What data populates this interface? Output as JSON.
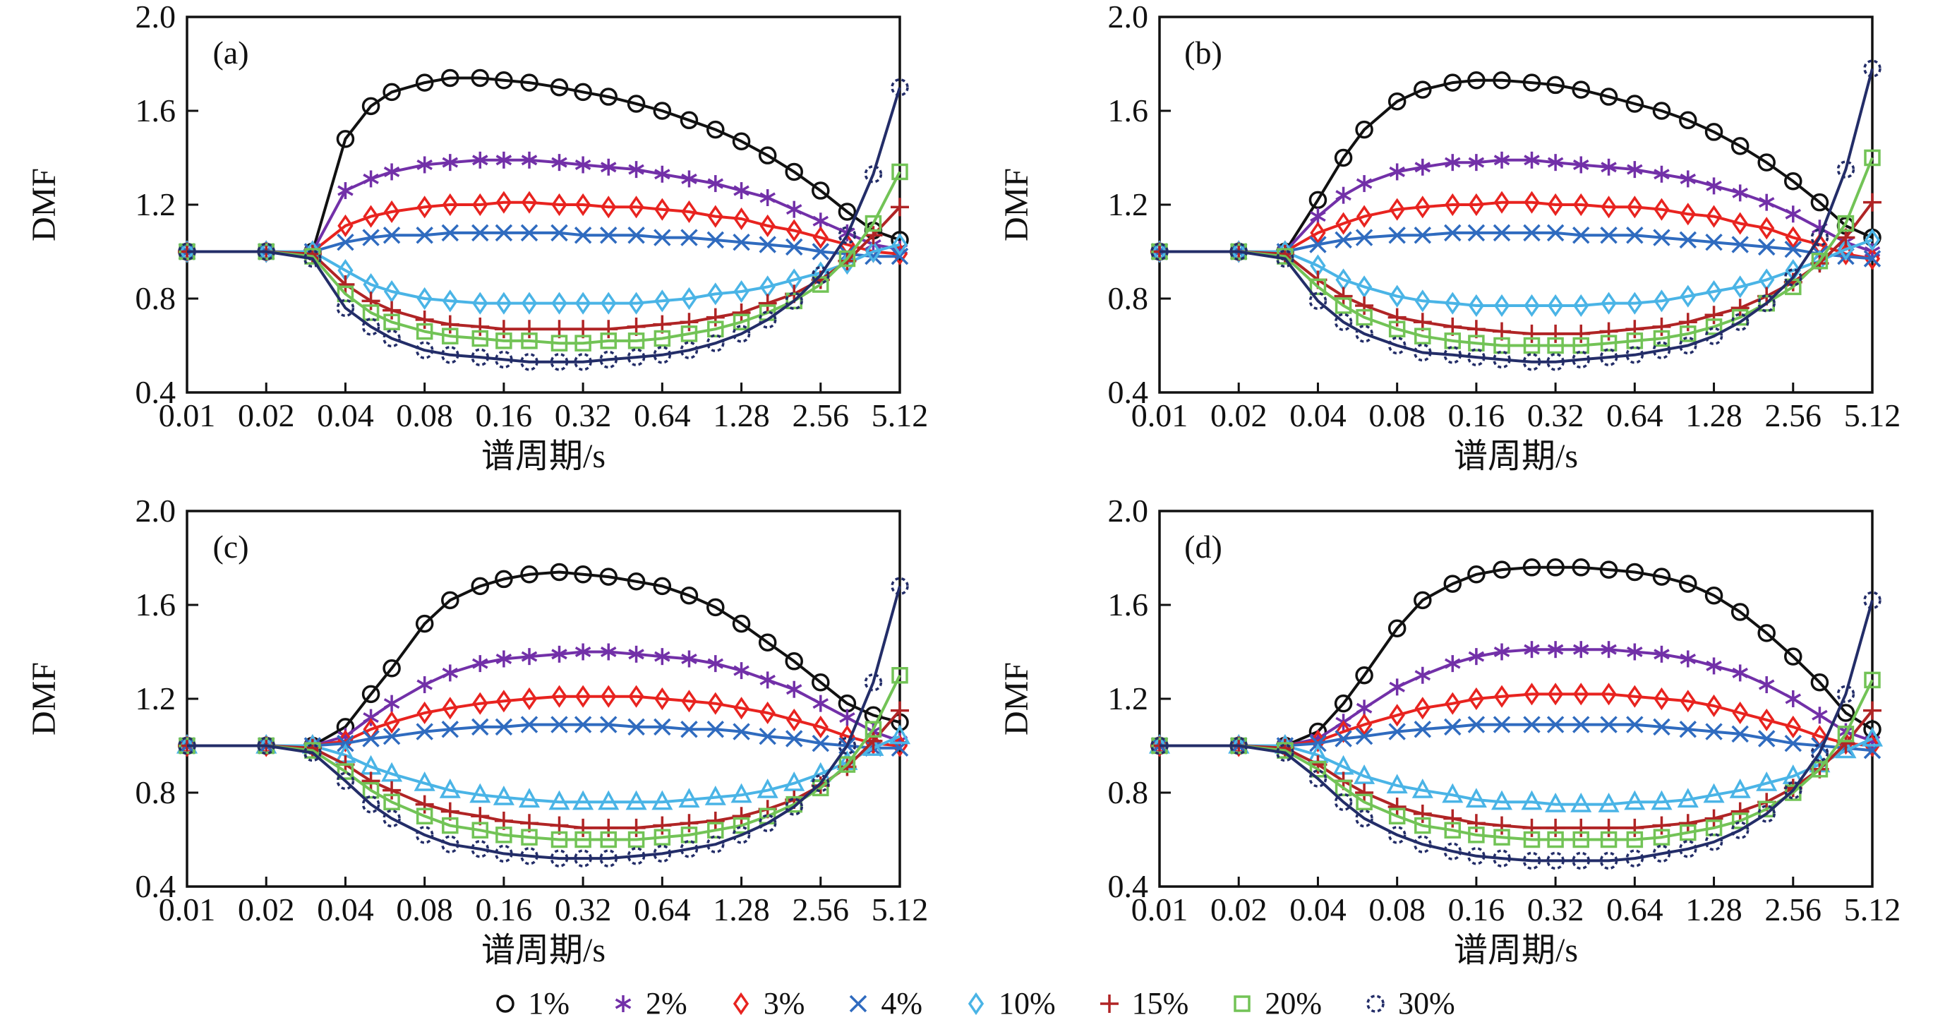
{
  "figure": {
    "background": "#ffffff",
    "subplot_letters": [
      "(a)",
      "(b)",
      "(c)",
      "(d)"
    ]
  },
  "chart_data": {
    "type": "line+scatter",
    "x_scale": "log2",
    "xlim": [
      0.01,
      5.12
    ],
    "ylim": [
      0.4,
      2.0
    ],
    "grid": "off",
    "legend_position": "bottom-center",
    "xlabel": "谱周期/s",
    "ylabel": "DMF",
    "x_tick_labels": [
      "0.01",
      "0.02",
      "0.04",
      "0.08",
      "0.16",
      "0.32",
      "0.64",
      "1.28",
      "2.56",
      "5.12"
    ],
    "y_tick_labels": [
      "0.4",
      "0.8",
      "1.2",
      "1.6",
      "2.0"
    ],
    "x": [
      0.01,
      0.02,
      0.03,
      0.04,
      0.05,
      0.06,
      0.08,
      0.1,
      0.13,
      0.16,
      0.2,
      0.26,
      0.32,
      0.4,
      0.51,
      0.64,
      0.81,
      1.02,
      1.28,
      1.61,
      2.03,
      2.56,
      3.23,
      4.06,
      5.12
    ],
    "series": [
      {
        "key": "1pct",
        "label": "1%",
        "color": "#111111",
        "marker": "circle"
      },
      {
        "key": "2pct",
        "label": "2%",
        "color": "#7230a8",
        "marker": "asterisk"
      },
      {
        "key": "3pct",
        "label": "3%",
        "color": "#e8231f",
        "marker": "diamond"
      },
      {
        "key": "4pct",
        "label": "4%",
        "color": "#2f6bbf",
        "marker": "xcross"
      },
      {
        "key": "10pct",
        "label": "10%",
        "color": "#4ab4e6",
        "marker": "diamond"
      },
      {
        "key": "15pct",
        "label": "15%",
        "color": "#b02425",
        "marker": "plus"
      },
      {
        "key": "20pct",
        "label": "20%",
        "color": "#72c356",
        "marker": "square"
      },
      {
        "key": "30pct",
        "label": "30%",
        "color": "#232d68",
        "marker": "dashed-circle"
      }
    ],
    "subplots": [
      {
        "id": "a",
        "label": "(a)",
        "marker_overrides": {},
        "values": {
          "1%": [
            1.0,
            1.0,
            1.0,
            1.48,
            1.62,
            1.68,
            1.72,
            1.74,
            1.74,
            1.73,
            1.72,
            1.7,
            1.68,
            1.66,
            1.63,
            1.6,
            1.56,
            1.52,
            1.47,
            1.41,
            1.34,
            1.26,
            1.17,
            1.09,
            1.05
          ],
          "2%": [
            1.0,
            1.0,
            1.0,
            1.26,
            1.31,
            1.34,
            1.37,
            1.38,
            1.39,
            1.39,
            1.39,
            1.38,
            1.37,
            1.36,
            1.35,
            1.33,
            1.31,
            1.29,
            1.26,
            1.23,
            1.18,
            1.13,
            1.08,
            1.03,
            1.01
          ],
          "3%": [
            1.0,
            1.0,
            1.0,
            1.11,
            1.15,
            1.17,
            1.19,
            1.2,
            1.2,
            1.21,
            1.21,
            1.2,
            1.2,
            1.19,
            1.19,
            1.18,
            1.17,
            1.15,
            1.14,
            1.11,
            1.09,
            1.06,
            1.03,
            1.0,
            0.99
          ],
          "4%": [
            1.0,
            1.0,
            1.0,
            1.04,
            1.06,
            1.07,
            1.07,
            1.08,
            1.08,
            1.08,
            1.08,
            1.08,
            1.07,
            1.07,
            1.07,
            1.06,
            1.06,
            1.05,
            1.04,
            1.03,
            1.02,
            1.0,
            0.99,
            0.98,
            0.98
          ],
          "10%": [
            1.0,
            1.0,
            1.0,
            0.92,
            0.86,
            0.83,
            0.8,
            0.79,
            0.78,
            0.78,
            0.78,
            0.78,
            0.78,
            0.78,
            0.78,
            0.79,
            0.8,
            0.82,
            0.83,
            0.85,
            0.88,
            0.91,
            0.95,
            1.0,
            1.03
          ],
          "15%": [
            1.0,
            1.0,
            0.99,
            0.86,
            0.79,
            0.75,
            0.71,
            0.69,
            0.68,
            0.67,
            0.67,
            0.67,
            0.67,
            0.67,
            0.68,
            0.69,
            0.7,
            0.72,
            0.74,
            0.78,
            0.82,
            0.88,
            0.96,
            1.07,
            1.19
          ],
          "20%": [
            1.0,
            1.0,
            0.98,
            0.82,
            0.74,
            0.7,
            0.66,
            0.64,
            0.63,
            0.62,
            0.62,
            0.61,
            0.61,
            0.62,
            0.62,
            0.63,
            0.65,
            0.67,
            0.7,
            0.74,
            0.79,
            0.86,
            0.97,
            1.12,
            1.34
          ],
          "30%": [
            1.0,
            1.0,
            0.97,
            0.76,
            0.68,
            0.63,
            0.58,
            0.56,
            0.55,
            0.54,
            0.53,
            0.53,
            0.53,
            0.54,
            0.55,
            0.56,
            0.58,
            0.61,
            0.65,
            0.71,
            0.79,
            0.9,
            1.07,
            1.33,
            1.7
          ]
        }
      },
      {
        "id": "b",
        "label": "(b)",
        "marker_overrides": {},
        "values": {
          "1%": [
            1.0,
            1.0,
            1.0,
            1.22,
            1.4,
            1.52,
            1.64,
            1.69,
            1.72,
            1.73,
            1.73,
            1.72,
            1.71,
            1.69,
            1.66,
            1.63,
            1.6,
            1.56,
            1.51,
            1.45,
            1.38,
            1.3,
            1.21,
            1.11,
            1.06
          ],
          "2%": [
            1.0,
            1.0,
            1.0,
            1.15,
            1.24,
            1.29,
            1.34,
            1.36,
            1.38,
            1.38,
            1.39,
            1.39,
            1.38,
            1.37,
            1.36,
            1.35,
            1.33,
            1.31,
            1.28,
            1.25,
            1.21,
            1.16,
            1.1,
            1.04,
            1.0
          ],
          "3%": [
            1.0,
            1.0,
            1.0,
            1.08,
            1.12,
            1.15,
            1.18,
            1.19,
            1.2,
            1.2,
            1.21,
            1.21,
            1.2,
            1.2,
            1.19,
            1.19,
            1.18,
            1.16,
            1.15,
            1.12,
            1.1,
            1.06,
            1.03,
            0.99,
            0.97
          ],
          "4%": [
            1.0,
            1.0,
            1.0,
            1.03,
            1.05,
            1.06,
            1.07,
            1.07,
            1.08,
            1.08,
            1.08,
            1.08,
            1.08,
            1.07,
            1.07,
            1.07,
            1.06,
            1.05,
            1.04,
            1.03,
            1.02,
            1.01,
            0.99,
            0.98,
            0.97
          ],
          "10%": [
            1.0,
            1.0,
            1.0,
            0.94,
            0.88,
            0.85,
            0.81,
            0.79,
            0.78,
            0.77,
            0.77,
            0.77,
            0.77,
            0.77,
            0.78,
            0.78,
            0.79,
            0.81,
            0.83,
            0.85,
            0.88,
            0.92,
            0.96,
            1.01,
            1.05
          ],
          "15%": [
            1.0,
            1.0,
            0.99,
            0.88,
            0.81,
            0.77,
            0.72,
            0.7,
            0.68,
            0.67,
            0.66,
            0.65,
            0.65,
            0.65,
            0.66,
            0.67,
            0.68,
            0.7,
            0.73,
            0.76,
            0.81,
            0.87,
            0.95,
            1.06,
            1.21
          ],
          "20%": [
            1.0,
            1.0,
            0.98,
            0.85,
            0.77,
            0.72,
            0.67,
            0.64,
            0.62,
            0.61,
            0.6,
            0.6,
            0.6,
            0.6,
            0.61,
            0.62,
            0.63,
            0.65,
            0.68,
            0.72,
            0.78,
            0.85,
            0.96,
            1.12,
            1.4
          ],
          "30%": [
            1.0,
            1.0,
            0.97,
            0.79,
            0.7,
            0.65,
            0.6,
            0.57,
            0.56,
            0.55,
            0.54,
            0.53,
            0.53,
            0.54,
            0.55,
            0.56,
            0.58,
            0.6,
            0.64,
            0.7,
            0.78,
            0.89,
            1.06,
            1.35,
            1.78
          ]
        }
      },
      {
        "id": "c",
        "label": "(c)",
        "marker_overrides": {
          "10%": "triangle"
        },
        "values": {
          "1%": [
            1.0,
            1.0,
            1.0,
            1.08,
            1.22,
            1.33,
            1.52,
            1.62,
            1.68,
            1.71,
            1.73,
            1.74,
            1.73,
            1.72,
            1.7,
            1.68,
            1.64,
            1.59,
            1.52,
            1.44,
            1.36,
            1.27,
            1.18,
            1.13,
            1.1
          ],
          "2%": [
            1.0,
            1.0,
            1.0,
            1.04,
            1.12,
            1.18,
            1.26,
            1.31,
            1.35,
            1.37,
            1.38,
            1.39,
            1.4,
            1.4,
            1.39,
            1.38,
            1.37,
            1.35,
            1.32,
            1.28,
            1.24,
            1.18,
            1.12,
            1.06,
            1.02
          ],
          "3%": [
            1.0,
            1.0,
            1.0,
            1.02,
            1.07,
            1.1,
            1.14,
            1.16,
            1.18,
            1.19,
            1.2,
            1.21,
            1.21,
            1.21,
            1.21,
            1.2,
            1.19,
            1.18,
            1.16,
            1.14,
            1.11,
            1.08,
            1.04,
            1.01,
            1.0
          ],
          "4%": [
            1.0,
            1.0,
            1.0,
            1.01,
            1.03,
            1.04,
            1.06,
            1.07,
            1.08,
            1.08,
            1.09,
            1.09,
            1.09,
            1.09,
            1.08,
            1.08,
            1.07,
            1.07,
            1.06,
            1.04,
            1.03,
            1.01,
            1.0,
            0.99,
            0.99
          ],
          "10%": [
            1.0,
            1.0,
            1.0,
            0.96,
            0.91,
            0.88,
            0.84,
            0.81,
            0.79,
            0.78,
            0.77,
            0.76,
            0.76,
            0.76,
            0.76,
            0.76,
            0.77,
            0.78,
            0.79,
            0.81,
            0.84,
            0.88,
            0.93,
            0.99,
            1.04
          ],
          "15%": [
            1.0,
            1.0,
            0.99,
            0.92,
            0.85,
            0.81,
            0.75,
            0.72,
            0.7,
            0.68,
            0.67,
            0.66,
            0.65,
            0.65,
            0.65,
            0.66,
            0.67,
            0.68,
            0.7,
            0.73,
            0.77,
            0.83,
            0.91,
            1.02,
            1.15
          ],
          "20%": [
            1.0,
            1.0,
            0.98,
            0.89,
            0.81,
            0.76,
            0.7,
            0.66,
            0.64,
            0.62,
            0.61,
            0.6,
            0.6,
            0.6,
            0.6,
            0.61,
            0.62,
            0.64,
            0.66,
            0.7,
            0.75,
            0.82,
            0.92,
            1.07,
            1.3
          ],
          "30%": [
            1.0,
            1.0,
            0.97,
            0.85,
            0.75,
            0.69,
            0.62,
            0.58,
            0.56,
            0.54,
            0.53,
            0.52,
            0.52,
            0.52,
            0.53,
            0.54,
            0.56,
            0.58,
            0.62,
            0.67,
            0.74,
            0.84,
            1.0,
            1.27,
            1.68
          ]
        }
      },
      {
        "id": "d",
        "label": "(d)",
        "marker_overrides": {
          "10%": "triangle"
        },
        "values": {
          "1%": [
            1.0,
            1.0,
            1.0,
            1.06,
            1.18,
            1.3,
            1.5,
            1.62,
            1.69,
            1.73,
            1.75,
            1.76,
            1.76,
            1.76,
            1.75,
            1.74,
            1.72,
            1.69,
            1.64,
            1.57,
            1.48,
            1.38,
            1.27,
            1.14,
            1.07
          ],
          "2%": [
            1.0,
            1.0,
            1.0,
            1.03,
            1.1,
            1.16,
            1.25,
            1.3,
            1.35,
            1.38,
            1.4,
            1.41,
            1.41,
            1.41,
            1.41,
            1.4,
            1.39,
            1.37,
            1.34,
            1.31,
            1.26,
            1.2,
            1.13,
            1.06,
            1.02
          ],
          "3%": [
            1.0,
            1.0,
            1.0,
            1.02,
            1.06,
            1.09,
            1.13,
            1.16,
            1.18,
            1.2,
            1.21,
            1.22,
            1.22,
            1.22,
            1.22,
            1.21,
            1.2,
            1.19,
            1.17,
            1.14,
            1.11,
            1.08,
            1.04,
            1.01,
            1.0
          ],
          "4%": [
            1.0,
            1.0,
            1.0,
            1.01,
            1.03,
            1.04,
            1.06,
            1.07,
            1.08,
            1.09,
            1.09,
            1.09,
            1.09,
            1.09,
            1.09,
            1.09,
            1.08,
            1.07,
            1.06,
            1.05,
            1.03,
            1.01,
            1.0,
            0.99,
            0.98
          ],
          "10%": [
            1.0,
            1.0,
            1.0,
            0.96,
            0.91,
            0.87,
            0.83,
            0.81,
            0.79,
            0.77,
            0.76,
            0.76,
            0.75,
            0.75,
            0.75,
            0.76,
            0.76,
            0.77,
            0.79,
            0.81,
            0.84,
            0.87,
            0.92,
            0.98,
            1.03
          ],
          "15%": [
            1.0,
            1.0,
            0.99,
            0.92,
            0.85,
            0.8,
            0.74,
            0.71,
            0.69,
            0.67,
            0.66,
            0.65,
            0.65,
            0.65,
            0.65,
            0.65,
            0.66,
            0.67,
            0.69,
            0.72,
            0.76,
            0.82,
            0.9,
            1.01,
            1.15
          ],
          "20%": [
            1.0,
            1.0,
            0.98,
            0.9,
            0.82,
            0.76,
            0.7,
            0.66,
            0.64,
            0.62,
            0.61,
            0.6,
            0.6,
            0.6,
            0.6,
            0.6,
            0.61,
            0.63,
            0.65,
            0.68,
            0.73,
            0.8,
            0.9,
            1.05,
            1.28
          ],
          "30%": [
            1.0,
            1.0,
            0.97,
            0.86,
            0.76,
            0.69,
            0.62,
            0.58,
            0.55,
            0.53,
            0.52,
            0.51,
            0.51,
            0.51,
            0.51,
            0.52,
            0.54,
            0.56,
            0.59,
            0.64,
            0.71,
            0.81,
            0.97,
            1.22,
            1.62
          ]
        }
      }
    ]
  }
}
